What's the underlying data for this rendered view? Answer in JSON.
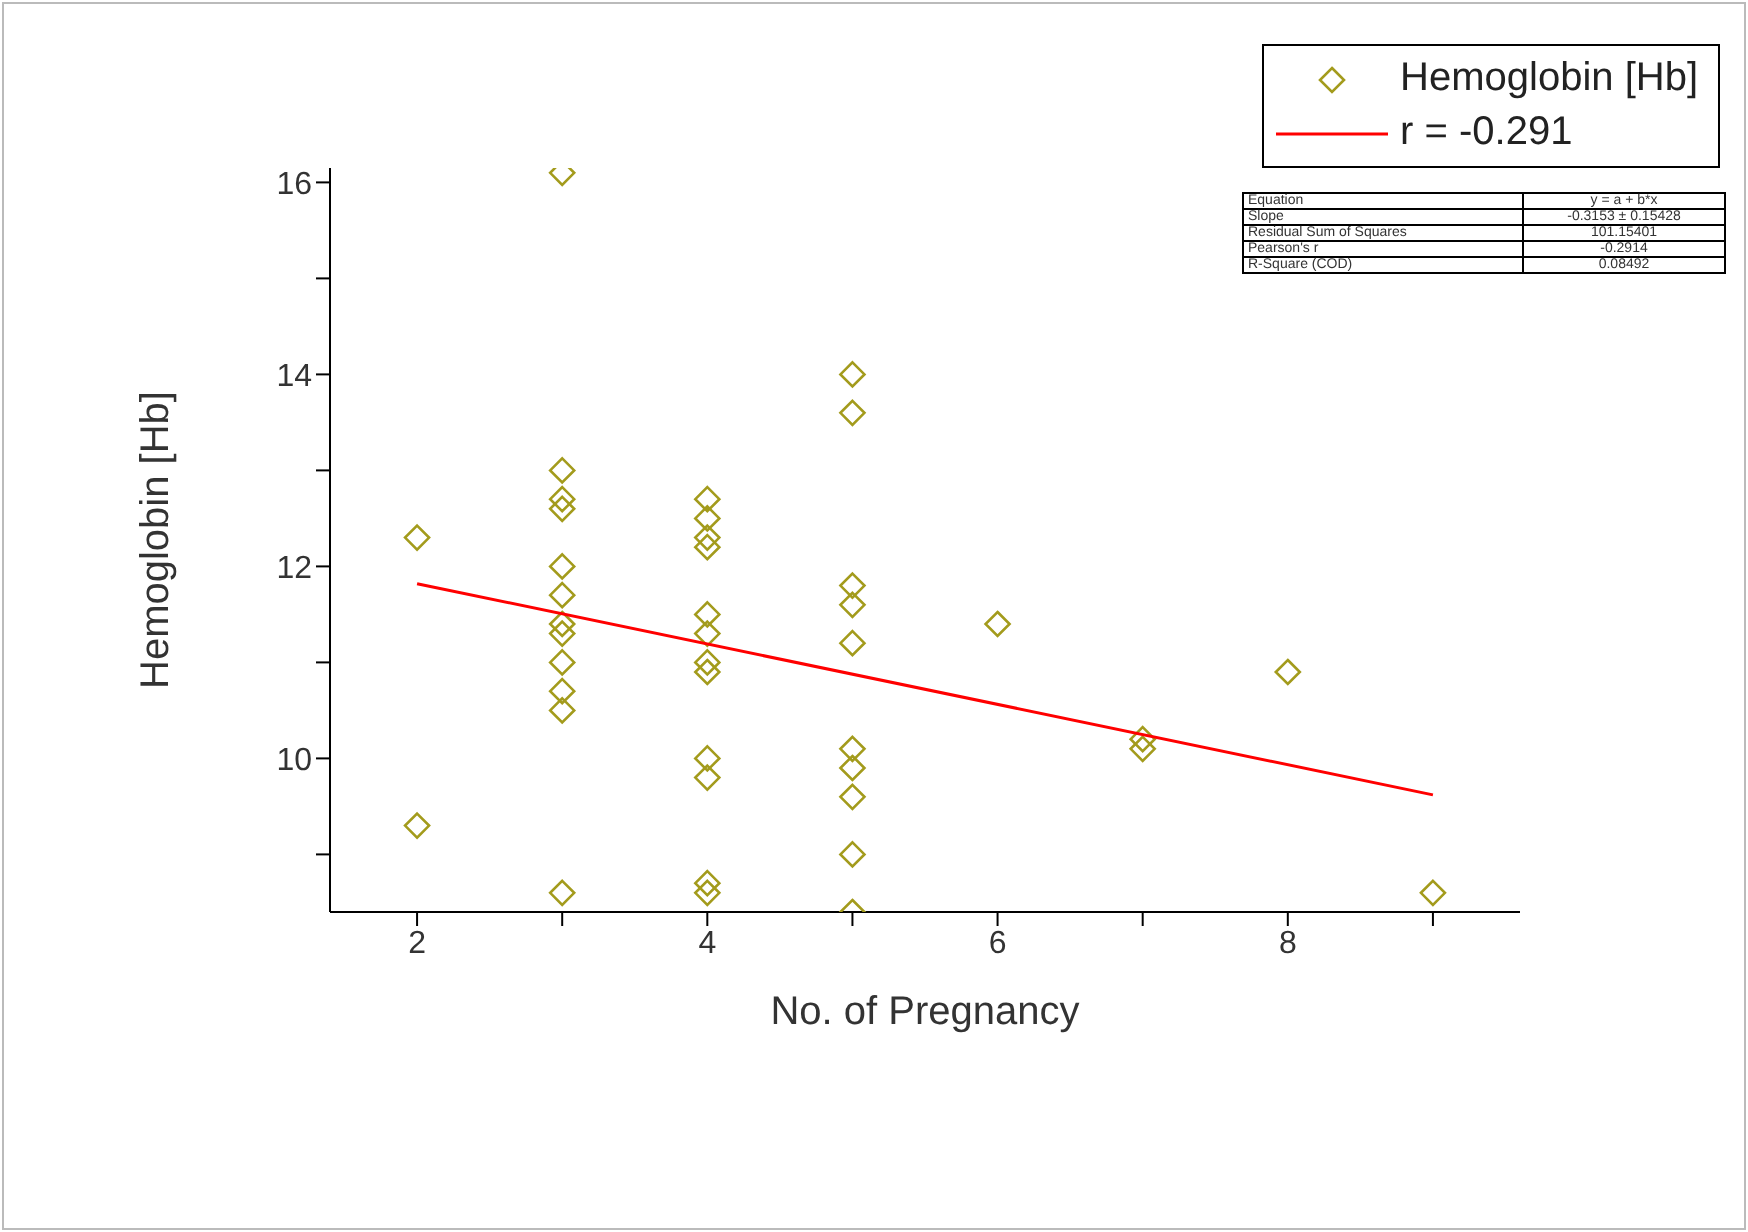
{
  "chart_data": {
    "type": "scatter",
    "xlabel": "No. of Pregnancy",
    "ylabel": "Hemoglobin [Hb]",
    "xlim": [
      1.4,
      9.6
    ],
    "ylim": [
      8.4,
      16.15
    ],
    "xticks": [
      2,
      {
        "value": 3,
        "label": null
      },
      4,
      {
        "value": 5,
        "label": null
      },
      6,
      {
        "value": 7,
        "label": null
      },
      8,
      {
        "value": 9,
        "label": null
      }
    ],
    "yticks": [
      {
        "value": 9,
        "label": null
      },
      10,
      {
        "value": 11,
        "label": null
      },
      12,
      {
        "value": 13,
        "label": null
      },
      14,
      {
        "value": 15,
        "label": null
      },
      16
    ],
    "grid": false,
    "legend": "top right",
    "marker": "diamond",
    "series": [
      {
        "name": "Hemoglobin [Hb]",
        "type": "scatter",
        "color": "#a39b1c",
        "x": [
          2,
          2,
          3,
          3,
          3,
          3,
          3,
          3,
          3,
          3,
          3,
          3,
          3,
          3,
          4,
          4,
          4,
          4,
          4,
          4,
          4,
          4,
          4,
          4,
          4,
          4,
          5,
          5,
          5,
          5,
          5,
          5,
          5,
          5,
          5,
          5,
          6,
          7,
          7,
          8,
          9
        ],
        "values": [
          12.3,
          9.3,
          16.1,
          13.0,
          12.7,
          12.6,
          12.0,
          11.7,
          11.4,
          11.3,
          11.0,
          10.7,
          10.5,
          8.6,
          12.7,
          12.5,
          12.3,
          12.2,
          11.5,
          11.3,
          11.0,
          10.9,
          10.0,
          9.8,
          8.7,
          8.6,
          14.0,
          13.6,
          11.8,
          11.6,
          11.2,
          10.1,
          9.9,
          9.6,
          9.0,
          8.4,
          11.4,
          10.2,
          10.1,
          10.9,
          8.6
        ]
      },
      {
        "name": "r = -0.291",
        "type": "line",
        "color": "#ff0000",
        "marker": "none",
        "line_style": "solid",
        "x": [
          2,
          9
        ],
        "values": [
          11.82,
          9.62
        ]
      }
    ],
    "annotations": [
      "Equation",
      "y = a + b*x",
      "Slope",
      "-0.3153 ± 0.15428",
      "Residual Sum of Squares",
      "101.15401",
      "Pearson's r",
      "-0.2914",
      "R-Square (COD)",
      "0.08492"
    ]
  }
}
